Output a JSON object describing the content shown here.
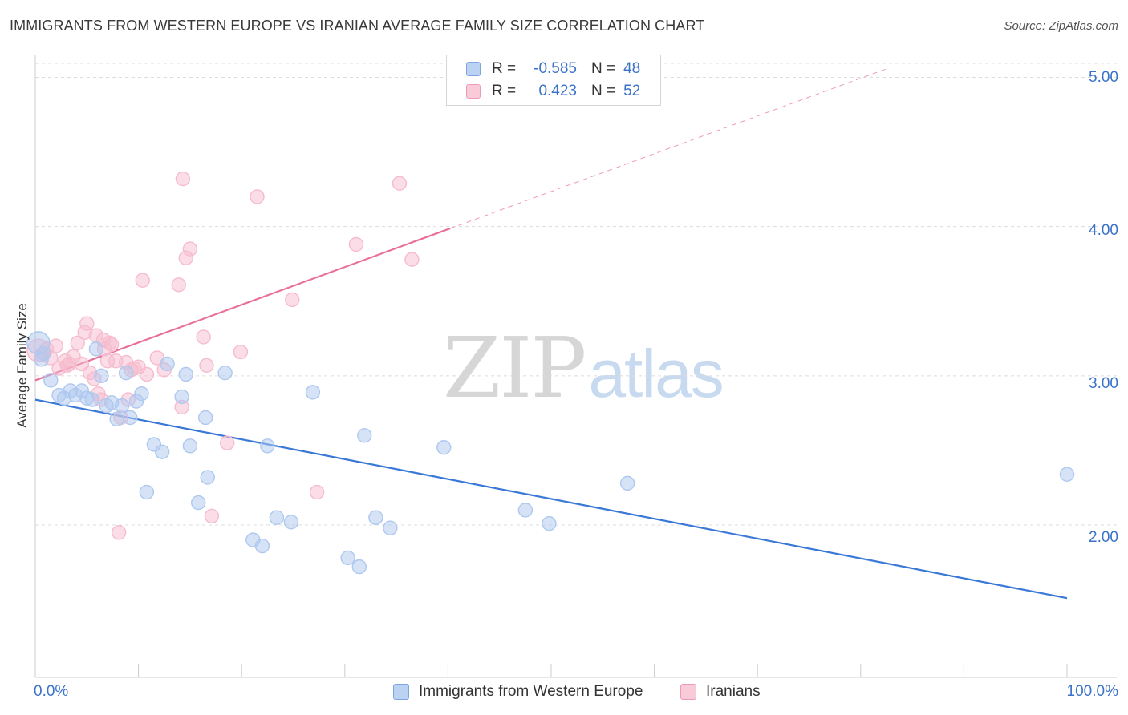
{
  "header": {
    "title": "IMMIGRANTS FROM WESTERN EUROPE VS IRANIAN AVERAGE FAMILY SIZE CORRELATION CHART",
    "source": "Source: ZipAtlas.com"
  },
  "legend": {
    "rows": [
      {
        "r_label": "R =",
        "r_value": "-0.585",
        "n_label": "N =",
        "n_value": "48",
        "color": "#aec8f0"
      },
      {
        "r_label": "R =",
        "r_value": "0.423",
        "n_label": "N =",
        "n_value": "52",
        "color": "#f6bccd"
      }
    ]
  },
  "watermark": {
    "zip": "ZIP",
    "atlas": "atlas"
  },
  "chart_data": {
    "type": "scatter",
    "title": "IMMIGRANTS FROM WESTERN EUROPE VS IRANIAN AVERAGE FAMILY SIZE CORRELATION CHART",
    "xlabel": "",
    "ylabel": "Average Family Size",
    "xlim": [
      0,
      100
    ],
    "ylim": [
      1.0,
      5.15
    ],
    "x_tick_labels": [
      "0.0%",
      "100.0%"
    ],
    "y_ticks": [
      {
        "value": 2.0,
        "label": "2.00"
      },
      {
        "value": 3.0,
        "label": "3.00"
      },
      {
        "value": 4.0,
        "label": "4.00"
      },
      {
        "value": 5.0,
        "label": "5.00"
      }
    ],
    "grid": true,
    "legend_position": "bottom",
    "series": [
      {
        "name": "Immigrants from Western Europe",
        "color": "#3a78d8",
        "fill": "#aec8f0",
        "r": -0.585,
        "n": 48,
        "trend": {
          "x": [
            0,
            100
          ],
          "y": [
            2.84,
            1.51
          ],
          "solid_until": 100
        },
        "points": [
          [
            0.3,
            3.22
          ],
          [
            0.6,
            3.11
          ],
          [
            1.5,
            2.97
          ],
          [
            2.3,
            2.87
          ],
          [
            2.8,
            2.85
          ],
          [
            3.4,
            2.9
          ],
          [
            3.9,
            2.87
          ],
          [
            4.5,
            2.9
          ],
          [
            5.0,
            2.85
          ],
          [
            5.5,
            2.84
          ],
          [
            5.9,
            3.18
          ],
          [
            6.4,
            3.0
          ],
          [
            6.9,
            2.8
          ],
          [
            7.4,
            2.82
          ],
          [
            7.9,
            2.71
          ],
          [
            8.4,
            2.8
          ],
          [
            8.8,
            3.02
          ],
          [
            9.2,
            2.72
          ],
          [
            9.8,
            2.83
          ],
          [
            10.3,
            2.88
          ],
          [
            10.8,
            2.22
          ],
          [
            11.5,
            2.54
          ],
          [
            12.3,
            2.49
          ],
          [
            12.8,
            3.08
          ],
          [
            14.2,
            2.86
          ],
          [
            14.6,
            3.01
          ],
          [
            15.0,
            2.53
          ],
          [
            15.8,
            2.15
          ],
          [
            16.5,
            2.72
          ],
          [
            16.7,
            2.32
          ],
          [
            18.4,
            3.02
          ],
          [
            21.1,
            1.9
          ],
          [
            22.0,
            1.86
          ],
          [
            22.5,
            2.53
          ],
          [
            23.4,
            2.05
          ],
          [
            24.8,
            2.02
          ],
          [
            26.9,
            2.89
          ],
          [
            30.3,
            1.78
          ],
          [
            31.4,
            1.72
          ],
          [
            31.9,
            2.6
          ],
          [
            33.0,
            2.05
          ],
          [
            34.4,
            1.98
          ],
          [
            39.6,
            2.52
          ],
          [
            47.5,
            2.1
          ],
          [
            49.8,
            2.01
          ],
          [
            57.4,
            2.28
          ],
          [
            100.0,
            2.34
          ],
          [
            0.8,
            3.15
          ]
        ]
      },
      {
        "name": "Iranians",
        "color": "#e8709a",
        "fill": "#f6bccd",
        "r": 0.423,
        "n": 52,
        "trend": {
          "x": [
            0,
            100
          ],
          "y": [
            2.97,
            5.5
          ],
          "solid_until": 40.2
        },
        "points": [
          [
            0.3,
            3.17
          ],
          [
            0.6,
            3.14
          ],
          [
            1.1,
            3.18
          ],
          [
            1.5,
            3.12
          ],
          [
            2.0,
            3.2
          ],
          [
            2.3,
            3.05
          ],
          [
            2.9,
            3.1
          ],
          [
            3.3,
            3.08
          ],
          [
            3.7,
            3.13
          ],
          [
            4.1,
            3.22
          ],
          [
            4.5,
            3.08
          ],
          [
            4.8,
            3.29
          ],
          [
            5.0,
            3.35
          ],
          [
            5.3,
            3.02
          ],
          [
            5.7,
            2.98
          ],
          [
            5.9,
            3.27
          ],
          [
            6.1,
            2.88
          ],
          [
            6.4,
            2.84
          ],
          [
            6.7,
            3.18
          ],
          [
            7.0,
            3.1
          ],
          [
            7.2,
            3.22
          ],
          [
            7.4,
            3.21
          ],
          [
            7.8,
            3.1
          ],
          [
            8.1,
            1.95
          ],
          [
            8.3,
            2.72
          ],
          [
            8.8,
            3.09
          ],
          [
            9.0,
            2.84
          ],
          [
            9.3,
            3.04
          ],
          [
            9.6,
            3.05
          ],
          [
            10.0,
            3.06
          ],
          [
            10.4,
            3.64
          ],
          [
            10.8,
            3.01
          ],
          [
            11.8,
            3.12
          ],
          [
            12.5,
            3.04
          ],
          [
            13.9,
            3.61
          ],
          [
            14.2,
            2.79
          ],
          [
            14.3,
            4.32
          ],
          [
            14.6,
            3.79
          ],
          [
            15.0,
            3.85
          ],
          [
            16.3,
            3.26
          ],
          [
            16.6,
            3.07
          ],
          [
            17.1,
            2.06
          ],
          [
            18.6,
            2.55
          ],
          [
            19.9,
            3.16
          ],
          [
            21.5,
            4.2
          ],
          [
            24.9,
            3.51
          ],
          [
            27.3,
            2.22
          ],
          [
            31.1,
            3.88
          ],
          [
            35.3,
            4.29
          ],
          [
            36.5,
            3.78
          ],
          [
            6.6,
            3.24
          ],
          [
            3.1,
            3.07
          ]
        ]
      }
    ]
  }
}
